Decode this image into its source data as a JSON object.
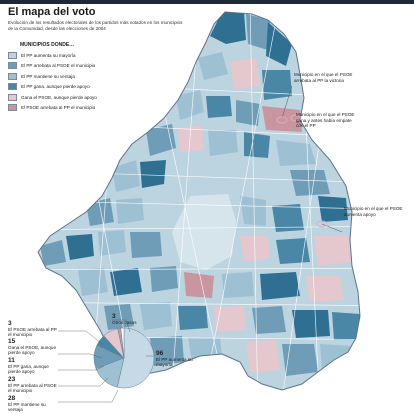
{
  "header": {
    "title": "El mapa del voto",
    "subtitle": "Evolución de los resultados electorales de los partidos más votados en los municipios de la Comunidad, desde las elecciones de 2004"
  },
  "legend": {
    "title": "MUNICIPIOS DONDE…",
    "items": [
      {
        "label": "El PP aumenta su mayoría",
        "color": "#bcd3e0"
      },
      {
        "label": "El PP arrebata al PSOE el municipio",
        "color": "#6f9db8"
      },
      {
        "label": "El PP mantiene su ventaja",
        "color": "#9ec0d3"
      },
      {
        "label": "El PP gana, aunque pierde apoyo",
        "color": "#4a87a6"
      },
      {
        "label": "Gana el PSOE, aunque pierde apoyo",
        "color": "#e4c8cd"
      },
      {
        "label": "El PSOE arrebata al PP el municipio",
        "color": "#c9969f"
      }
    ]
  },
  "annotations": [
    {
      "text": "Municipio en el que el PSOE arrebata al PP la victoria"
    },
    {
      "text": "Municipio en el que el PSOE gana y antes había empate con el PP"
    },
    {
      "text": "Municipio en el que el PSOE aumenta apoyo"
    }
  ],
  "pie": {
    "slices": [
      {
        "value": 96,
        "label": "El PP aumenta su mayoría",
        "color": "#c5d9e6"
      },
      {
        "value": 28,
        "label": "El PP mantiene su ventaja",
        "color": "#9ec0d3"
      },
      {
        "value": 23,
        "label": "El PP arrebata al PSOE el municipio",
        "color": "#6f9db8"
      },
      {
        "value": 11,
        "label": "El PP gana, aunque pierde apoyo",
        "color": "#4a87a6"
      },
      {
        "value": 15,
        "label": "Gana el PSOE, aunque pierde apoyo",
        "color": "#e4c8cd"
      },
      {
        "value": 3,
        "label": "El PSOE arrebata al PP el municipio",
        "color": "#c9969f"
      },
      {
        "value": 3,
        "label": "Otros casos",
        "color": "#ffffff"
      }
    ]
  },
  "colors": {
    "outline": "#5e7387",
    "pp_gain": "#bcd3e0",
    "pp_hold": "#9ec0d3",
    "pp_flip": "#6f9db8",
    "pp_lose": "#4a87a6",
    "dark": "#2f6f92",
    "psoe_hold": "#e4c8cd",
    "psoe_flip": "#c9969f",
    "madrid": "#d6e4ec"
  }
}
